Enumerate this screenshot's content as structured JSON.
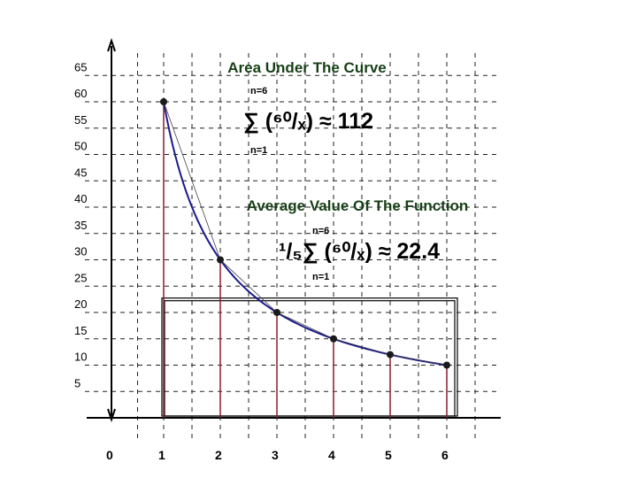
{
  "chart_data": {
    "type": "line",
    "x": [
      1,
      2,
      3,
      4,
      5,
      6
    ],
    "series": [
      {
        "values": [
          60,
          30,
          20,
          15,
          12,
          10
        ]
      }
    ],
    "x_ticks": [
      "0",
      "1",
      "2",
      "3",
      "4",
      "5",
      "6"
    ],
    "y_ticks": [
      "5",
      "10",
      "15",
      "20",
      "25",
      "30",
      "35",
      "40",
      "45",
      "50",
      "55",
      "60",
      "65"
    ],
    "xlim": [
      0,
      6.8
    ],
    "ylim": [
      0,
      70
    ],
    "grid": true,
    "average_value": 22.4,
    "colors": {
      "curve": "#1a1a8c",
      "stems": "#8b1a2e",
      "points": "#1a1a1a",
      "title": "#173f17"
    },
    "annotations": {
      "area_title": "Area Under The Curve",
      "area_upper": "n=6",
      "area_lower": "n=1",
      "area_formula": "∑ (⁶⁰/ₓ) ≈ 112",
      "avg_title": "Average Value Of The Function",
      "avg_upper": "n=6",
      "avg_lower": "n=1",
      "avg_formula": "¹/₅∑ (⁶⁰/ₓ) ≈ 22.4"
    }
  }
}
